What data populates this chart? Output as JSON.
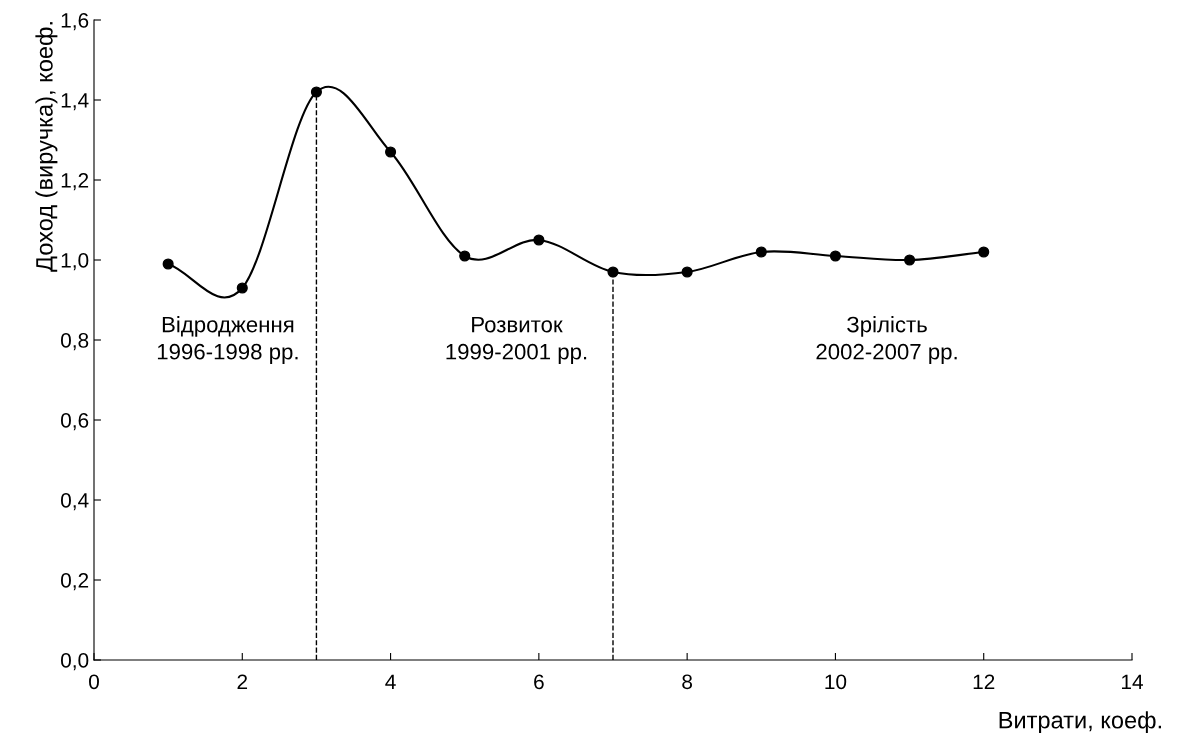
{
  "chart_data": {
    "type": "line",
    "xlabel": "Витрати, коеф.",
    "ylabel": "Доход (виручка), коеф.",
    "x": [
      1,
      2,
      3,
      4,
      5,
      6,
      7,
      8,
      9,
      10,
      11,
      12
    ],
    "series": [
      {
        "color": "#000000",
        "values": [
          0.99,
          0.93,
          1.42,
          1.27,
          1.01,
          1.05,
          0.97,
          0.97,
          1.02,
          1.01,
          1.0,
          1.02
        ]
      }
    ],
    "marker": "circle",
    "line_style": "solid",
    "grid": false,
    "legend": false,
    "xlim": [
      0,
      14
    ],
    "xticks": [
      0,
      2,
      4,
      6,
      8,
      10,
      12,
      14
    ],
    "ylim": [
      0,
      1.6
    ],
    "yticks": [
      {
        "value": 0,
        "label": "0,0"
      },
      {
        "value": 0.2,
        "label": "0,2"
      },
      {
        "value": 0.4,
        "label": "0,4"
      },
      {
        "value": 0.6,
        "label": "0,6"
      },
      {
        "value": 0.8,
        "label": "0,8"
      },
      {
        "value": 1.0,
        "label": "1,0"
      },
      {
        "value": 1.2,
        "label": "1,2"
      },
      {
        "value": 1.4,
        "label": "1,4"
      },
      {
        "value": 1.6,
        "label": "1,6"
      }
    ],
    "ref_lines": [
      {
        "axis": "x",
        "value": 3,
        "line_style": "dashed",
        "color": "#000000"
      },
      {
        "axis": "x",
        "value": 7,
        "line_style": "dashed",
        "color": "#000000"
      }
    ],
    "annotations": [
      "Відродження\n1996-1998 рр.",
      "Розвиток\n1999-2001 рр.",
      "Зрілість\n2002-2007 рр."
    ]
  }
}
